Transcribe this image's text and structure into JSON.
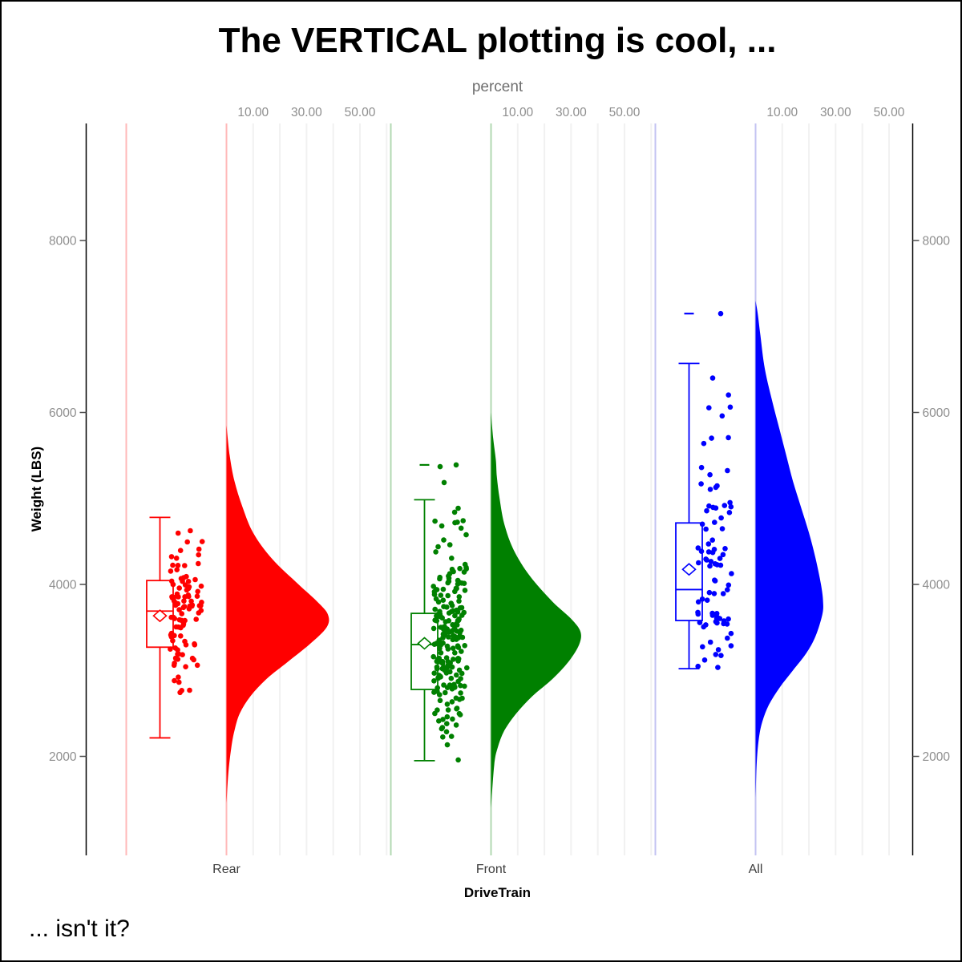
{
  "chart_data": {
    "type": "raincloud (vertical half-violin + boxplot + jittered points)",
    "title": "The VERTICAL plotting is cool, ...",
    "footnote": "... isn't it?",
    "xlabel": "DriveTrain",
    "ylabel": "Weight (LBS)",
    "categories": [
      "Rear",
      "Front",
      "All"
    ],
    "y_ticks": [
      2000,
      4000,
      6000,
      8000
    ],
    "y_range": [
      850,
      9400
    ],
    "grid": "light vertical percent gridlines inside each category panel",
    "legend_position": "none",
    "top_axis": {
      "label": "percent",
      "tick_labels": [
        "10.00",
        "30.00",
        "50.00"
      ],
      "tick_percents": [
        10,
        30,
        50
      ],
      "gridline_step_percent": 10,
      "gridline_max_percent": 60
    },
    "colors": {
      "axis_line": "#000000",
      "tick_label_gray": "#8e8e8e",
      "category_label_gray": "#3d3d3d",
      "gridline_gray": "#f1f1f1"
    },
    "groups": [
      {
        "label": "Rear",
        "color": "#ff0000",
        "light_color": "#ffb9b9",
        "n_points": 100,
        "box": {
          "min": 2215,
          "q1": 3270,
          "median": 3690,
          "mean": 3635,
          "q3": 4045,
          "max": 4780,
          "outliers": []
        },
        "points_weight_range": [
          2170,
          4780
        ],
        "extra_points": [],
        "density_percent_by_weight": [
          [
            1450,
            0
          ],
          [
            1800,
            0.7
          ],
          [
            2100,
            1.8
          ],
          [
            2300,
            3
          ],
          [
            2500,
            5
          ],
          [
            2700,
            9
          ],
          [
            2900,
            15
          ],
          [
            3100,
            23
          ],
          [
            3300,
            31
          ],
          [
            3500,
            37.5
          ],
          [
            3650,
            38
          ],
          [
            3800,
            34
          ],
          [
            4000,
            27
          ],
          [
            4300,
            17
          ],
          [
            4600,
            10
          ],
          [
            4900,
            6
          ],
          [
            5200,
            3
          ],
          [
            5500,
            1.2
          ],
          [
            5850,
            0
          ]
        ]
      },
      {
        "label": "Front",
        "color": "#008000",
        "light_color": "#b2d8b2",
        "n_points": 210,
        "box": {
          "min": 1950,
          "q1": 2778,
          "median": 3300,
          "mean": 3315,
          "q3": 3663,
          "max": 4985,
          "outliers": [
            5390
          ]
        },
        "points_weight_range": [
          1935,
          4990
        ],
        "extra_points": [
          [
            -12.5,
            5370
          ],
          [
            7.5,
            5390
          ],
          [
            -7.5,
            5185
          ]
        ],
        "density_percent_by_weight": [
          [
            1400,
            0
          ],
          [
            1900,
            1.2
          ],
          [
            2100,
            2.5
          ],
          [
            2300,
            5
          ],
          [
            2500,
            9.5
          ],
          [
            2700,
            15.5
          ],
          [
            2900,
            23
          ],
          [
            3100,
            29
          ],
          [
            3300,
            33
          ],
          [
            3450,
            33.5
          ],
          [
            3600,
            30
          ],
          [
            3800,
            23
          ],
          [
            4100,
            14.5
          ],
          [
            4400,
            8.5
          ],
          [
            4700,
            5
          ],
          [
            5000,
            3.2
          ],
          [
            5250,
            2.2
          ],
          [
            5450,
            1.8
          ],
          [
            5700,
            0.8
          ],
          [
            6000,
            0
          ]
        ]
      },
      {
        "label": "All",
        "color": "#0000ff",
        "light_color": "#c3c3f2",
        "n_points": 85,
        "box": {
          "min": 3020,
          "q1": 3580,
          "median": 3940,
          "mean": 4175,
          "q3": 4715,
          "max": 6570,
          "outliers": [
            7150
          ]
        },
        "points_weight_range": [
          3020,
          6460
        ],
        "extra_points": [
          [
            7.5,
            7150
          ],
          [
            -2.5,
            6400
          ]
        ],
        "density_percent_by_weight": [
          [
            1500,
            0
          ],
          [
            1900,
            0.4
          ],
          [
            2200,
            1.2
          ],
          [
            2400,
            2.5
          ],
          [
            2600,
            5
          ],
          [
            2800,
            9
          ],
          [
            3000,
            14
          ],
          [
            3200,
            19
          ],
          [
            3400,
            22.5
          ],
          [
            3650,
            25
          ],
          [
            3800,
            25.3
          ],
          [
            4000,
            24.5
          ],
          [
            4300,
            22.5
          ],
          [
            4600,
            20
          ],
          [
            4900,
            17
          ],
          [
            5200,
            14
          ],
          [
            5500,
            11.5
          ],
          [
            5800,
            9
          ],
          [
            6100,
            6.5
          ],
          [
            6500,
            3.5
          ],
          [
            6900,
            1.8
          ],
          [
            7150,
            0.8
          ],
          [
            7300,
            0
          ]
        ]
      }
    ]
  }
}
